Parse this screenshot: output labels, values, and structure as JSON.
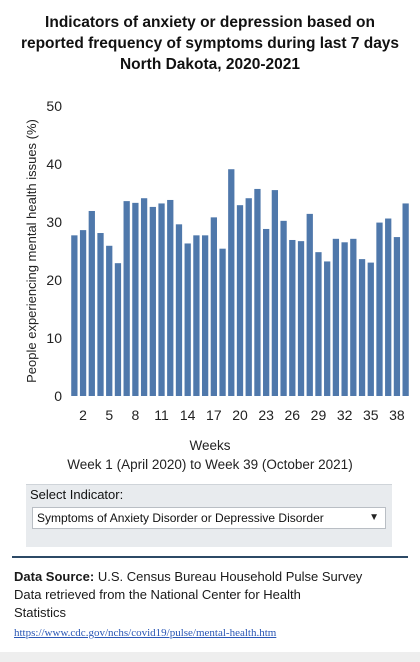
{
  "title_lines": [
    "Indicators of anxiety or depression based on",
    "reported frequency of symptoms during last 7 days",
    "North Dakota, 2020-2021"
  ],
  "xaxis": {
    "title": "Weeks",
    "subtitle": "Week 1 (April 2020) to Week 39 (October 2021)"
  },
  "indicator": {
    "label": "Select Indicator:",
    "selected": "Symptoms of Anxiety Disorder or Depressive Disorder"
  },
  "source": {
    "label": "Data Source:",
    "text": "U.S. Census Bureau Household Pulse Survey",
    "line2": "Data retrieved from the National Center for Health",
    "line3": "Statistics",
    "url": "https://www.cdc.gov/nchs/covid19/pulse/mental-health.htm"
  },
  "colors": {
    "bar": "#4f78ab",
    "divider": "#2c4a66"
  },
  "chart_data": {
    "type": "bar",
    "title": "Indicators of anxiety or depression based on reported frequency of symptoms during last 7 days North Dakota, 2020-2021",
    "xlabel": "Weeks",
    "ylabel": "People experiencing mental health issues (%)",
    "ylim": [
      0,
      50
    ],
    "yticks": [
      0,
      10,
      20,
      30,
      40,
      50
    ],
    "xtick_labels": [
      "2",
      "5",
      "8",
      "11",
      "14",
      "17",
      "20",
      "23",
      "26",
      "29",
      "32",
      "35",
      "38"
    ],
    "categories": [
      "1",
      "2",
      "3",
      "4",
      "5",
      "6",
      "7",
      "8",
      "9",
      "10",
      "11",
      "12",
      "13",
      "14",
      "15",
      "16",
      "17",
      "18",
      "19",
      "20",
      "21",
      "22",
      "23",
      "24",
      "25",
      "26",
      "27",
      "28",
      "29",
      "30",
      "31",
      "32",
      "33",
      "34",
      "35",
      "36",
      "37",
      "38",
      "39"
    ],
    "values": [
      27.7,
      28.6,
      31.9,
      28.1,
      25.9,
      22.9,
      33.6,
      33.3,
      34.1,
      32.6,
      33.2,
      33.8,
      29.6,
      26.3,
      27.7,
      27.7,
      30.8,
      25.4,
      39.1,
      32.9,
      34.1,
      35.7,
      28.8,
      35.5,
      30.2,
      26.9,
      26.7,
      31.4,
      24.8,
      23.2,
      27.1,
      26.5,
      27.1,
      23.6,
      23.0,
      29.9,
      30.6,
      27.4,
      33.2
    ],
    "grid": false,
    "legend": "none"
  }
}
